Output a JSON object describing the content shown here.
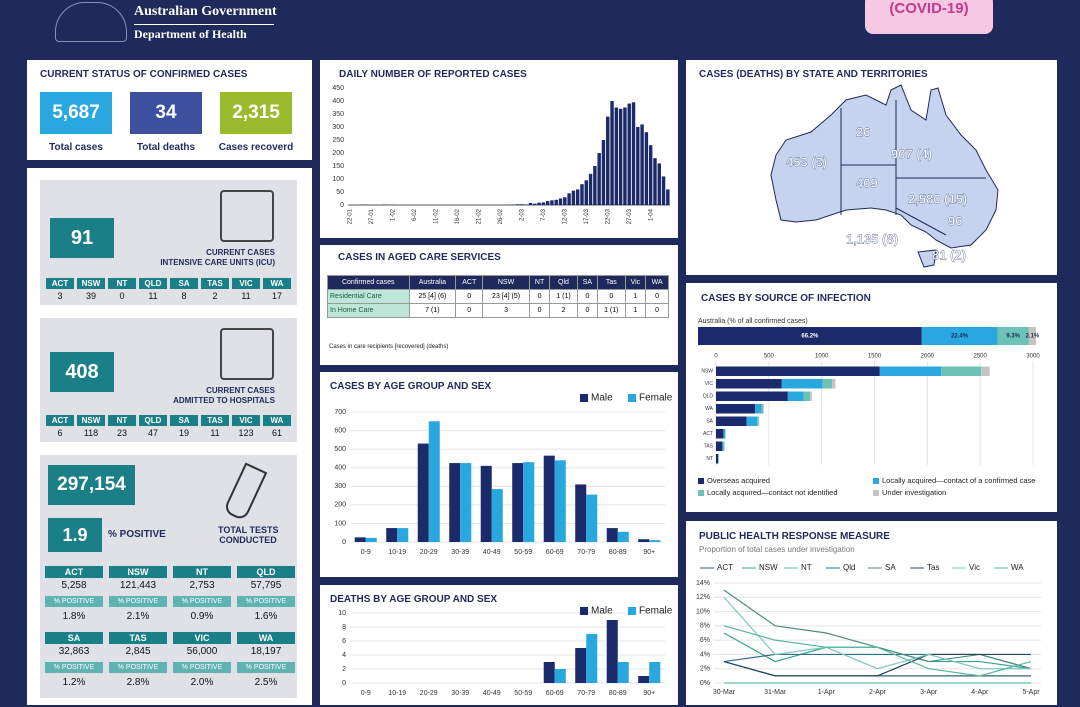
{
  "header": {
    "org": "Australian Government",
    "dept": "Department of Health",
    "badge": "(COVID-19)"
  },
  "status": {
    "title": "CURRENT STATUS OF CONFIRMED CASES",
    "items": [
      {
        "value": "5,687",
        "label": "Total cases"
      },
      {
        "value": "34",
        "label": "Total deaths"
      },
      {
        "value": "2,315",
        "label": "Cases recoverd"
      }
    ]
  },
  "icu": {
    "value": "91",
    "label": [
      "CURRENT CASES",
      "INTENSIVE CARE UNITS (ICU)"
    ],
    "states": [
      "ACT",
      "NSW",
      "NT",
      "QLD",
      "SA",
      "TAS",
      "VIC",
      "WA"
    ],
    "counts": [
      "3",
      "39",
      "0",
      "11",
      "8",
      "2",
      "11",
      "17"
    ]
  },
  "hospital": {
    "value": "408",
    "label": [
      "CURRENT CASES",
      "ADMITTED TO HOSPITALS"
    ],
    "states": [
      "ACT",
      "NSW",
      "NT",
      "QLD",
      "SA",
      "TAS",
      "VIC",
      "WA"
    ],
    "counts": [
      "6",
      "118",
      "23",
      "47",
      "19",
      "11",
      "123",
      "61"
    ]
  },
  "tests": {
    "value": "297,154",
    "positive": "1.9",
    "positive_label": "% POSITIVE",
    "label": [
      "TOTAL TESTS",
      "CONDUCTED"
    ],
    "states": [
      {
        "name": "ACT",
        "tests": "5,258",
        "pct_label": "% POSITIVE",
        "pct": "1.8%"
      },
      {
        "name": "NSW",
        "tests": "121,443",
        "pct_label": "% POSITIVE",
        "pct": "2.1%"
      },
      {
        "name": "NT",
        "tests": "2,753",
        "pct_label": "% POSITIVE",
        "pct": "0.9%"
      },
      {
        "name": "QLD",
        "tests": "57,795",
        "pct_label": "% POSITIVE",
        "pct": "1.6%"
      },
      {
        "name": "SA",
        "tests": "32,863",
        "pct_label": "% POSITIVE",
        "pct": "1.2%"
      },
      {
        "name": "TAS",
        "tests": "2,845",
        "pct_label": "% POSITIVE",
        "pct": "2.8%"
      },
      {
        "name": "VIC",
        "tests": "56,000",
        "pct_label": "% POSITIVE",
        "pct": "2.0%"
      },
      {
        "name": "WA",
        "tests": "18,197",
        "pct_label": "% POSITIVE",
        "pct": "2.5%"
      }
    ]
  },
  "aged_care": {
    "title": "CASES IN AGED CARE SERVICES",
    "header": [
      "Confirmed cases",
      "Australia",
      "ACT",
      "NSW",
      "NT",
      "Qld",
      "SA",
      "Tas",
      "Vic",
      "WA"
    ],
    "rows": [
      [
        "Residential Care",
        "25 [4] (6)",
        "0",
        "23 [4] (5)",
        "0",
        "1 (1)",
        "0",
        "0",
        "1",
        "0"
      ],
      [
        "In Home Care",
        "7 (1)",
        "0",
        "3",
        "0",
        "2",
        "0",
        "1 (1)",
        "1",
        "0"
      ]
    ],
    "note": "Cases in care recipients [recovered] (deaths)"
  },
  "map": {
    "title": "CASES (DEATHS) BY STATE AND TERRITORIES",
    "labels": [
      "453 (3)",
      "26",
      "907 (4)",
      "409",
      "2,580 (15)",
      "96",
      "1,135 (8)",
      "81 (2)"
    ]
  },
  "chart_data": [
    {
      "type": "bar",
      "title": "DAILY NUMBER OF REPORTED CASES",
      "color": "#1b2a6b",
      "categories": [
        "22-01",
        null,
        null,
        null,
        null,
        "27-01",
        null,
        null,
        null,
        null,
        "1-02",
        null,
        null,
        null,
        null,
        "6-02",
        null,
        null,
        null,
        null,
        "11-02",
        null,
        null,
        null,
        null,
        "16-02",
        null,
        null,
        null,
        null,
        "21-02",
        null,
        null,
        null,
        null,
        "26-02",
        null,
        null,
        null,
        null,
        "2-03",
        null,
        null,
        null,
        null,
        "7-03",
        null,
        null,
        null,
        null,
        "12-03",
        null,
        null,
        null,
        null,
        "17-03",
        null,
        null,
        null,
        null,
        "22-03",
        null,
        null,
        null,
        null,
        "27-03",
        null,
        null,
        null,
        null,
        "1-04",
        null,
        null,
        null,
        null
      ],
      "values": [
        0,
        0,
        0,
        1,
        1,
        0,
        0,
        0,
        2,
        1,
        1,
        0,
        0,
        0,
        0,
        0,
        0,
        0,
        0,
        0,
        0,
        0,
        0,
        0,
        0,
        0,
        0,
        0,
        0,
        0,
        0,
        0,
        0,
        0,
        0,
        0,
        0,
        1,
        2,
        3,
        3,
        2,
        8,
        5,
        9,
        10,
        15,
        18,
        20,
        25,
        30,
        45,
        55,
        60,
        80,
        95,
        120,
        150,
        200,
        250,
        340,
        400,
        375,
        370,
        375,
        390,
        395,
        300,
        310,
        280,
        230,
        180,
        160,
        110,
        60
      ],
      "ylim": [
        0,
        450
      ],
      "yticks": [
        0,
        50,
        100,
        150,
        200,
        250,
        300,
        350,
        400,
        450
      ]
    },
    {
      "type": "grouped_bar",
      "title": "CASES BY AGE GROUP AND SEX",
      "categories": [
        "0-9",
        "10-19",
        "20-29",
        "30-39",
        "40-49",
        "50-59",
        "60-69",
        "70-79",
        "80-89",
        "90+"
      ],
      "series": [
        {
          "name": "Male",
          "color": "#1b2a6b",
          "values": [
            25,
            75,
            530,
            425,
            410,
            425,
            465,
            310,
            75,
            15
          ]
        },
        {
          "name": "Female",
          "color": "#29a8df",
          "values": [
            22,
            75,
            650,
            425,
            285,
            430,
            440,
            255,
            55,
            10
          ]
        }
      ],
      "ylim": [
        0,
        700
      ],
      "yticks": [
        0,
        100,
        200,
        300,
        400,
        500,
        600,
        700
      ],
      "grid": true
    },
    {
      "type": "grouped_bar",
      "title": "DEATHS BY AGE GROUP AND SEX",
      "categories": [
        "0-9",
        "10-19",
        "20-29",
        "30-39",
        "40-49",
        "50-59",
        "60-69",
        "70-79",
        "80-89",
        "90+"
      ],
      "series": [
        {
          "name": "Male",
          "color": "#1b2a6b",
          "values": [
            0,
            0,
            0,
            0,
            0,
            0,
            3,
            5,
            9,
            1
          ]
        },
        {
          "name": "Female",
          "color": "#29a8df",
          "values": [
            0,
            0,
            0,
            0,
            0,
            0,
            2,
            7,
            3,
            3
          ]
        }
      ],
      "ylim": [
        0,
        10
      ],
      "yticks": [
        0,
        2,
        4,
        6,
        8,
        10
      ],
      "grid": true
    },
    {
      "type": "stacked_hbar",
      "title": "CASES BY SOURCE OF INFECTION",
      "share": {
        "label": "Australia (% of all confirmed cases)",
        "values": [
          66.2,
          22.4,
          9.3,
          2.1
        ],
        "value_labels": [
          "66.2%",
          "22.4%",
          "9.3%",
          "2.1%"
        ]
      },
      "categories": [
        "NSW",
        "VIC",
        "QLD",
        "WA",
        "SA",
        "ACT",
        "TAS",
        "NT"
      ],
      "series": [
        {
          "name": "Overseas acquired",
          "color": "#1b2a6b",
          "values": [
            1550,
            620,
            680,
            370,
            290,
            70,
            60,
            20
          ]
        },
        {
          "name": "Locally acquired—contact of a confirmed case",
          "color": "#29a8df",
          "values": [
            580,
            390,
            150,
            60,
            100,
            15,
            10,
            5
          ]
        },
        {
          "name": "Locally acquired—contact not identified",
          "color": "#6cc3b5",
          "values": [
            380,
            90,
            60,
            15,
            15,
            5,
            10,
            1
          ]
        },
        {
          "name": "Under investigation",
          "color": "#c4c4c4",
          "values": [
            80,
            30,
            17,
            8,
            4,
            1,
            1,
            0
          ]
        }
      ],
      "xlim": [
        0,
        3000
      ],
      "xticks": [
        0,
        500,
        1000,
        1500,
        2000,
        2500,
        3000
      ],
      "grid": true
    },
    {
      "type": "line",
      "title": "PUBLIC HEALTH RESPONSE MEASURE",
      "subtitle": "Proportion of total cases under investigation",
      "categories": [
        "30-Mar",
        "31-Mar",
        "1-Apr",
        "2-Apr",
        "3-Apr",
        "4-Apr",
        "5-Apr"
      ],
      "series": [
        {
          "name": "ACT",
          "color": "#2e5f7a",
          "values": [
            3,
            1,
            1,
            1,
            1,
            1,
            1
          ]
        },
        {
          "name": "NSW",
          "color": "#3aa38f",
          "values": [
            7,
            3,
            5,
            5,
            3,
            3,
            2
          ]
        },
        {
          "name": "NT",
          "color": "#5fbfa8",
          "values": [
            0,
            0,
            0,
            0,
            0,
            0,
            0
          ]
        },
        {
          "name": "Qld",
          "color": "#2f6f8f",
          "values": [
            3,
            4,
            4,
            4,
            4,
            4,
            2
          ]
        },
        {
          "name": "SA",
          "color": "#4d8c80",
          "values": [
            13,
            8,
            7,
            5,
            3,
            4,
            2
          ]
        },
        {
          "name": "Tas",
          "color": "#23485f",
          "values": [
            3,
            1,
            1,
            1,
            4,
            4,
            4
          ]
        },
        {
          "name": "Vic",
          "color": "#7fc7c0",
          "values": [
            12,
            4,
            5,
            2,
            4,
            2,
            2
          ]
        },
        {
          "name": "WA",
          "color": "#56b6a3",
          "values": [
            8,
            6,
            5,
            5,
            2,
            1,
            3
          ]
        }
      ],
      "ylim": [
        0,
        14
      ],
      "yticks": [
        {
          "value": 0,
          "label": "0%"
        },
        {
          "value": 2,
          "label": "2%"
        },
        {
          "value": 4,
          "label": "4%"
        },
        {
          "value": 6,
          "label": "6%"
        },
        {
          "value": 8,
          "label": "8%"
        },
        {
          "value": 10,
          "label": "10%"
        },
        {
          "value": 12,
          "label": "12%"
        },
        {
          "value": 14,
          "label": "14%"
        }
      ],
      "grid": true
    }
  ]
}
